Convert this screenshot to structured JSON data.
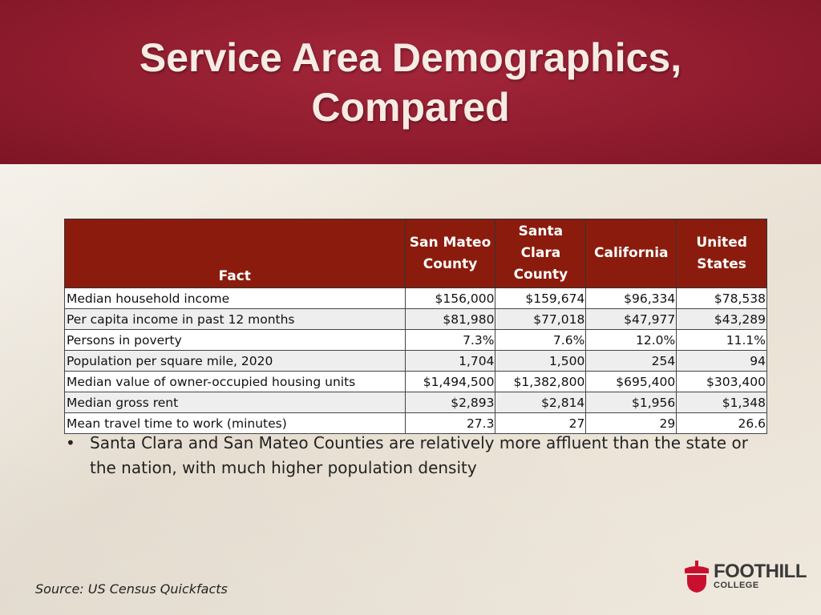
{
  "title": "Service Area Demographics, Compared",
  "table": {
    "headers": [
      "Fact",
      "San Mateo County",
      "Santa Clara County",
      "California",
      "United States"
    ],
    "rows": [
      [
        "Median household income",
        "$156,000",
        "$159,674",
        "$96,334",
        "$78,538"
      ],
      [
        "Per capita income in past 12 months",
        "$81,980",
        "$77,018",
        "$47,977",
        "$43,289"
      ],
      [
        "Persons in poverty",
        "7.3%",
        "7.6%",
        "12.0%",
        "11.1%"
      ],
      [
        "Population per square mile, 2020",
        "1,704",
        "1,500",
        "254",
        "94"
      ],
      [
        "Median value of owner-occupied housing units",
        "$1,494,500",
        "$1,382,800",
        "$695,400",
        "$303,400"
      ],
      [
        "Median gross rent",
        "$2,893",
        "$2,814",
        "$1,956",
        "$1,348"
      ],
      [
        "Mean travel time to work (minutes)",
        "27.3",
        "27",
        "29",
        "26.6"
      ]
    ]
  },
  "bullets": [
    "Santa Clara and San Mateo Counties are relatively more affluent than the state or the nation, with much higher population density"
  ],
  "source": "Source: US Census Quickfacts",
  "logo": {
    "name": "FOOTHILL",
    "sub": "COLLEGE",
    "icon": "acorn-icon"
  },
  "colors": {
    "header_bg": "#8f1c2e",
    "table_header_bg": "#8b1c0d",
    "logo_red": "#c8102e"
  }
}
